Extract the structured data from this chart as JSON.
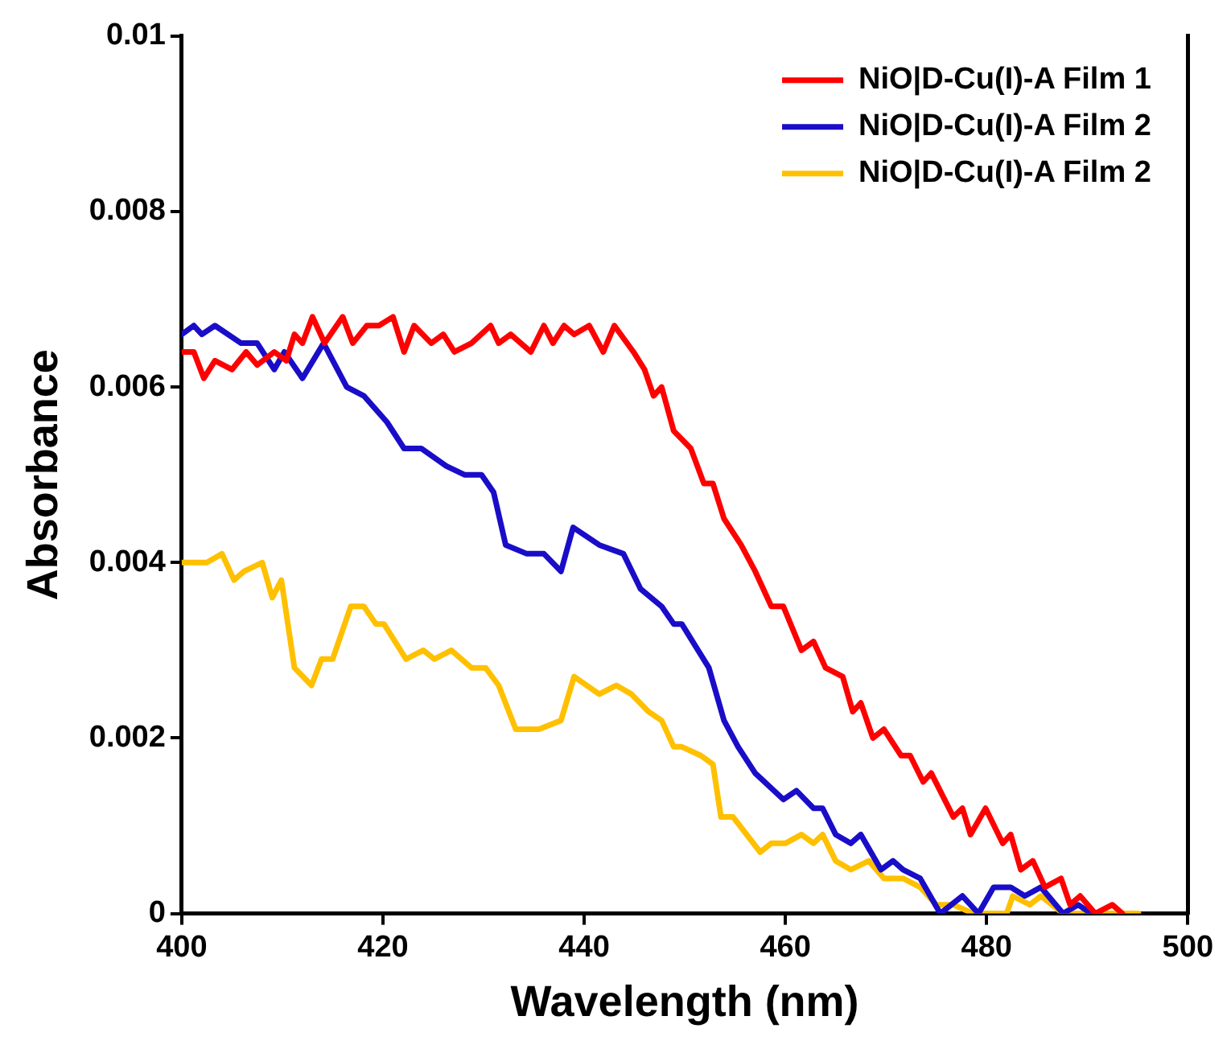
{
  "chart_data": {
    "type": "line",
    "xlabel": "Wavelength (nm)",
    "ylabel": "Absorbance",
    "xlim": [
      400,
      500
    ],
    "xticks": [
      400,
      420,
      440,
      460,
      480,
      500
    ],
    "ylim": [
      0,
      0.01
    ],
    "yticks": [
      0,
      0.002,
      0.004,
      0.006,
      0.008,
      0.01
    ],
    "grid": false,
    "legend": "top right",
    "marker": "none",
    "line_style": "solid",
    "series": [
      {
        "name": "NiO|D-Cu(I)-A Film 1",
        "color": "#ff0000",
        "x": [
          400,
          401.2,
          402.2,
          403.3,
          405,
          406.4,
          407.5,
          409.2,
          410.4,
          411.2,
          412,
          413,
          414.2,
          416,
          417,
          418.4,
          419.6,
          421,
          422.1,
          423.1,
          424.8,
          426,
          427.1,
          428.8,
          430.7,
          431.5,
          432.7,
          434.7,
          436,
          436.9,
          438,
          439,
          440.5,
          441.9,
          443,
          444.9,
          446,
          446.9,
          447.7,
          448.9,
          450.6,
          451.9,
          452.8,
          453.9,
          455.6,
          457,
          458.6,
          459.8,
          461.6,
          462.8,
          464,
          465.7,
          466.7,
          467.5,
          468.7,
          469.8,
          471.5,
          472.4,
          473.7,
          474.5,
          476.7,
          477.6,
          478.4,
          479.9,
          481.6,
          482.4,
          483.4,
          484.6,
          485.8,
          487.4,
          488.3,
          489.3,
          490.8,
          492.5,
          493.5
        ],
        "values": [
          0.0064,
          0.0064,
          0.0061,
          0.0063,
          0.0062,
          0.0064,
          0.00625,
          0.0064,
          0.0063,
          0.0066,
          0.0065,
          0.0068,
          0.0065,
          0.0068,
          0.0065,
          0.0067,
          0.0067,
          0.0068,
          0.0064,
          0.0067,
          0.0065,
          0.0066,
          0.0064,
          0.0065,
          0.0067,
          0.0065,
          0.0066,
          0.0064,
          0.0067,
          0.0065,
          0.0067,
          0.0066,
          0.0067,
          0.0064,
          0.0067,
          0.0064,
          0.0062,
          0.0059,
          0.006,
          0.0055,
          0.0053,
          0.0049,
          0.0049,
          0.0045,
          0.0042,
          0.0039,
          0.0035,
          0.0035,
          0.003,
          0.0031,
          0.0028,
          0.0027,
          0.0023,
          0.0024,
          0.002,
          0.0021,
          0.0018,
          0.0018,
          0.0015,
          0.0016,
          0.0011,
          0.0012,
          0.0009,
          0.0012,
          0.0008,
          0.0009,
          0.0005,
          0.0006,
          0.0003,
          0.0004,
          0.0001,
          0.0002,
          0,
          0.0001,
          0
        ]
      },
      {
        "name": "NiO|D-Cu(I)-A Film 2",
        "color": "#1a0dc8",
        "x": [
          400,
          401.2,
          402,
          403.3,
          405.9,
          407.5,
          409.2,
          410.2,
          412,
          414.1,
          416.4,
          418.1,
          420.4,
          422.1,
          423.8,
          426.3,
          428.1,
          429.8,
          431,
          432.2,
          434.3,
          436,
          437.7,
          438.9,
          441.5,
          443.9,
          445.6,
          447.7,
          448.9,
          449.7,
          452.4,
          453.9,
          455.3,
          457,
          459.8,
          461.1,
          462.8,
          463.7,
          465,
          466.5,
          467.5,
          469.5,
          470.7,
          471.7,
          473.4,
          475.4,
          477.6,
          479.2,
          480.7,
          482.4,
          483.8,
          485.4,
          487.6,
          489.1,
          490.4
        ],
        "values": [
          0.0066,
          0.0067,
          0.0066,
          0.0067,
          0.0065,
          0.0065,
          0.0062,
          0.0064,
          0.0061,
          0.0065,
          0.006,
          0.0059,
          0.0056,
          0.0053,
          0.0053,
          0.0051,
          0.005,
          0.005,
          0.0048,
          0.0042,
          0.0041,
          0.0041,
          0.0039,
          0.0044,
          0.0042,
          0.0041,
          0.0037,
          0.0035,
          0.0033,
          0.0033,
          0.0028,
          0.0022,
          0.0019,
          0.0016,
          0.0013,
          0.0014,
          0.0012,
          0.0012,
          0.0009,
          0.0008,
          0.0009,
          0.0005,
          0.0006,
          0.0005,
          0.0004,
          0,
          0.0002,
          0,
          0.0003,
          0.0003,
          0.0002,
          0.0003,
          0,
          0.0001,
          0
        ]
      },
      {
        "name": "NiO|D-Cu(I)-A Film 2",
        "color": "#ffc000",
        "x": [
          400,
          401.2,
          402.5,
          404,
          405.2,
          406.2,
          408,
          409,
          409.9,
          411.2,
          412.9,
          413.9,
          415,
          416.8,
          418.1,
          419.3,
          420.1,
          422.3,
          424,
          425.1,
          426.8,
          428.8,
          430.2,
          431.5,
          433.2,
          435.5,
          437.7,
          439,
          441.5,
          443.2,
          444.7,
          446.4,
          447.7,
          448.9,
          449.7,
          451.6,
          452.8,
          453.6,
          454.8,
          457.5,
          458.6,
          460,
          461.6,
          462.8,
          463.7,
          465,
          466.5,
          468.3,
          469.8,
          471.7,
          473.4,
          475,
          476.7,
          478.7,
          482,
          482.6,
          484.3,
          485.4,
          487.6,
          491.6,
          492.6,
          494.3,
          495.1
        ],
        "values": [
          0.004,
          0.004,
          0.004,
          0.0041,
          0.0038,
          0.0039,
          0.004,
          0.0036,
          0.0038,
          0.0028,
          0.0026,
          0.0029,
          0.0029,
          0.0035,
          0.0035,
          0.0033,
          0.0033,
          0.0029,
          0.003,
          0.0029,
          0.003,
          0.0028,
          0.0028,
          0.0026,
          0.0021,
          0.0021,
          0.0022,
          0.0027,
          0.0025,
          0.0026,
          0.0025,
          0.0023,
          0.0022,
          0.0019,
          0.0019,
          0.0018,
          0.0017,
          0.0011,
          0.0011,
          0.0007,
          0.0008,
          0.0008,
          0.0009,
          0.0008,
          0.0009,
          0.0006,
          0.0005,
          0.0006,
          0.0004,
          0.0004,
          0.0003,
          0.0001,
          0.0001,
          0,
          0,
          0.0002,
          0.0001,
          0.0002,
          0,
          0,
          0,
          0,
          0
        ]
      }
    ]
  }
}
